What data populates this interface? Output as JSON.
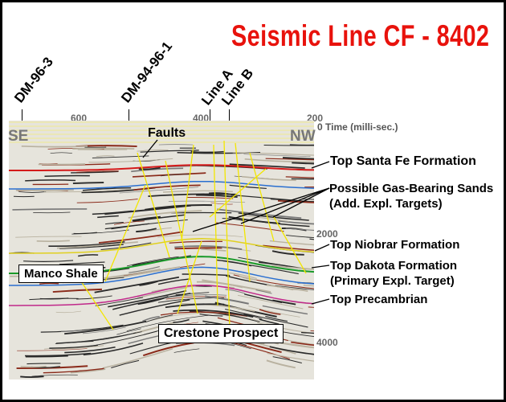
{
  "title": "Seismic Line CF - 8402",
  "wells": [
    "DM-96-3",
    "DM-94-96-1",
    "Line A",
    "Line B"
  ],
  "shotpoints": [
    "600",
    "400",
    "200"
  ],
  "directions": {
    "left": "SE",
    "right": "NW"
  },
  "time_axis": {
    "label": "0 Time (milli-sec.)",
    "ticks": [
      "2000",
      "4000"
    ]
  },
  "annotations": {
    "faults": "Faults",
    "santa_fe": "Top Santa Fe Formation",
    "gas_sands": "Possible Gas-Bearing Sands",
    "gas_sands_sub": "(Add. Expl. Targets)",
    "niobrara": "Top Niobrar Formation",
    "dakota": "Top Dakota Formation",
    "dakota_sub": "(Primary Expl. Target)",
    "precambrian": "Top Precambrian",
    "manco": "Manco Shale",
    "crestone": "Crestone Prospect"
  },
  "colors": {
    "title": "#e8120c",
    "fault": "#f2e600",
    "santa_fe": "#d41a1a",
    "dakota": "#1a9a2a",
    "precambrian": "#c0288a",
    "sands": "#2a6fd0"
  }
}
